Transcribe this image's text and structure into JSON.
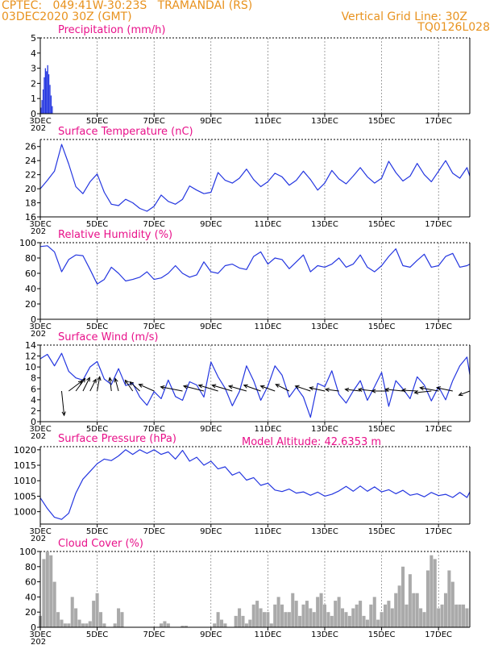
{
  "header": {
    "line1_left": "CPTEC:   049:41W-30:23S   TRAMANDAI (RS)",
    "line2_left": "03DEC2020 30Z (GMT)",
    "line2_right": "Vertical Grid Line: 30Z",
    "line3_right": "TQ0126L028",
    "model_altitude": "Model Altitude: 42.6353 m"
  },
  "colors": {
    "header": "#e8921e",
    "title": "#e8118a",
    "line": "#2436e0",
    "bar": "#2436e0",
    "cloud": "#aaaaaa",
    "arrow": "#000000"
  },
  "x_tick_labels": [
    "3DEC",
    "5DEC",
    "7DEC",
    "9DEC",
    "11DEC",
    "13DEC",
    "15DEC",
    "17DEC"
  ],
  "year_fragment": "202",
  "chart_data": [
    {
      "type": "bar",
      "title": "Precipitation (mm/h)",
      "x_start_day": 3,
      "x_end_day": 18.1,
      "ylim": [
        0,
        5
      ],
      "yticks": [
        0,
        1,
        2,
        3,
        4,
        5
      ],
      "x": [
        3.02,
        3.06,
        3.1,
        3.14,
        3.18,
        3.22,
        3.26,
        3.3,
        3.34,
        3.38,
        3.42
      ],
      "values": [
        0.4,
        0.9,
        1.6,
        2.4,
        3.0,
        2.8,
        3.2,
        2.6,
        1.9,
        1.2,
        0.5
      ]
    },
    {
      "type": "line",
      "title": "Surface Temperature (nC)",
      "x_start_day": 3,
      "x_end_day": 18.1,
      "ylim": [
        16,
        27
      ],
      "yticks": [
        16,
        18,
        20,
        22,
        24,
        26
      ],
      "x": [
        3.0,
        3.25,
        3.5,
        3.75,
        4.0,
        4.25,
        4.5,
        4.75,
        5.0,
        5.25,
        5.5,
        5.75,
        6.0,
        6.25,
        6.5,
        6.75,
        7.0,
        7.25,
        7.5,
        7.75,
        8.0,
        8.25,
        8.5,
        8.75,
        9.0,
        9.25,
        9.5,
        9.75,
        10.0,
        10.25,
        10.5,
        10.75,
        11.0,
        11.25,
        11.5,
        11.75,
        12.0,
        12.25,
        12.5,
        12.75,
        13.0,
        13.25,
        13.5,
        13.75,
        14.0,
        14.25,
        14.5,
        14.75,
        15.0,
        15.25,
        15.5,
        15.75,
        16.0,
        16.25,
        16.5,
        16.75,
        17.0,
        17.25,
        17.5,
        17.75,
        18.0,
        18.1
      ],
      "values": [
        20.0,
        21.2,
        22.5,
        26.3,
        23.5,
        20.3,
        19.3,
        21.0,
        22.1,
        19.5,
        17.8,
        17.6,
        18.5,
        18.0,
        17.2,
        16.8,
        17.5,
        19.1,
        18.2,
        17.8,
        18.5,
        20.4,
        19.8,
        19.3,
        19.5,
        22.3,
        21.2,
        20.8,
        21.5,
        22.8,
        21.3,
        20.3,
        21.0,
        22.2,
        21.7,
        20.5,
        21.2,
        22.5,
        21.3,
        19.8,
        20.8,
        22.6,
        21.4,
        20.7,
        21.8,
        23.0,
        21.7,
        20.8,
        21.5,
        23.9,
        22.3,
        21.1,
        21.8,
        23.6,
        22.0,
        21.0,
        22.5,
        24.0,
        22.2,
        21.5,
        23.0,
        21.8
      ]
    },
    {
      "type": "line",
      "title": "Relative Humidity (%)",
      "x_start_day": 3,
      "x_end_day": 18.1,
      "ylim": [
        0,
        100
      ],
      "yticks": [
        0,
        20,
        40,
        60,
        80,
        100
      ],
      "x": [
        3.0,
        3.25,
        3.5,
        3.75,
        4.0,
        4.25,
        4.5,
        4.75,
        5.0,
        5.25,
        5.5,
        5.75,
        6.0,
        6.25,
        6.5,
        6.75,
        7.0,
        7.25,
        7.5,
        7.75,
        8.0,
        8.25,
        8.5,
        8.75,
        9.0,
        9.25,
        9.5,
        9.75,
        10.0,
        10.25,
        10.5,
        10.75,
        11.0,
        11.25,
        11.5,
        11.75,
        12.0,
        12.25,
        12.5,
        12.75,
        13.0,
        13.25,
        13.5,
        13.75,
        14.0,
        14.25,
        14.5,
        14.75,
        15.0,
        15.25,
        15.5,
        15.75,
        16.0,
        16.25,
        16.5,
        16.75,
        17.0,
        17.25,
        17.5,
        17.75,
        18.0,
        18.1
      ],
      "values": [
        95,
        96,
        88,
        62,
        78,
        84,
        83,
        65,
        46,
        52,
        68,
        60,
        50,
        52,
        55,
        62,
        52,
        54,
        60,
        70,
        60,
        55,
        58,
        75,
        62,
        60,
        70,
        72,
        67,
        65,
        82,
        88,
        72,
        80,
        78,
        66,
        75,
        84,
        62,
        70,
        68,
        72,
        80,
        68,
        72,
        84,
        68,
        62,
        70,
        82,
        92,
        70,
        68,
        77,
        85,
        68,
        70,
        82,
        86,
        68,
        70,
        72
      ]
    },
    {
      "type": "line",
      "title": "Surface Wind (m/s)",
      "x_start_day": 3,
      "x_end_day": 18.1,
      "ylim": [
        0,
        14
      ],
      "yticks": [
        0,
        2,
        4,
        6,
        8,
        10,
        12,
        14
      ],
      "x": [
        3.0,
        3.25,
        3.5,
        3.75,
        4.0,
        4.25,
        4.5,
        4.75,
        5.0,
        5.25,
        5.5,
        5.75,
        6.0,
        6.25,
        6.5,
        6.75,
        7.0,
        7.25,
        7.5,
        7.75,
        8.0,
        8.25,
        8.5,
        8.75,
        9.0,
        9.25,
        9.5,
        9.75,
        10.0,
        10.25,
        10.5,
        10.75,
        11.0,
        11.25,
        11.5,
        11.75,
        12.0,
        12.25,
        12.5,
        12.75,
        13.0,
        13.25,
        13.5,
        13.75,
        14.0,
        14.25,
        14.5,
        14.75,
        15.0,
        15.25,
        15.5,
        15.75,
        16.0,
        16.25,
        16.5,
        16.75,
        17.0,
        17.25,
        17.5,
        17.75,
        18.0,
        18.1
      ],
      "values": [
        11.5,
        12.3,
        10.2,
        12.5,
        9.2,
        8.0,
        7.6,
        10.0,
        11.0,
        7.8,
        6.8,
        9.7,
        6.6,
        7.0,
        4.5,
        3.0,
        5.5,
        4.2,
        7.6,
        4.6,
        3.9,
        7.3,
        6.7,
        4.5,
        10.9,
        8.2,
        6.1,
        2.9,
        5.5,
        10.2,
        7.5,
        3.9,
        6.5,
        10.2,
        8.5,
        4.5,
        6.3,
        4.5,
        0.8,
        7.0,
        6.4,
        9.3,
        5.0,
        3.4,
        5.6,
        7.5,
        3.9,
        6.4,
        9.0,
        2.8,
        7.5,
        6.0,
        4.2,
        8.2,
        6.7,
        3.8,
        6.4,
        4.0,
        7.5,
        10.2,
        11.8,
        8.6
      ],
      "vectors": [
        {
          "x": 3.75,
          "u": 0.6,
          "v": -5.8
        },
        {
          "x": 4.0,
          "u": 3.2,
          "v": 2.4
        },
        {
          "x": 4.25,
          "u": 2.2,
          "v": 3.0
        },
        {
          "x": 4.5,
          "u": 1.6,
          "v": 3.2
        },
        {
          "x": 4.75,
          "u": 1.4,
          "v": 2.8
        },
        {
          "x": 5.0,
          "u": 0.6,
          "v": 3.4
        },
        {
          "x": 5.5,
          "u": -0.4,
          "v": 3.2
        },
        {
          "x": 5.75,
          "u": -0.8,
          "v": 3.0
        },
        {
          "x": 6.25,
          "u": -1.8,
          "v": 2.6
        },
        {
          "x": 6.5,
          "u": -2.4,
          "v": 2.2
        },
        {
          "x": 7.0,
          "u": -3.6,
          "v": 1.6
        },
        {
          "x": 8.0,
          "u": -5.2,
          "v": 1.0
        },
        {
          "x": 8.75,
          "u": -4.8,
          "v": 1.2
        },
        {
          "x": 9.25,
          "u": -4.6,
          "v": 1.4
        },
        {
          "x": 9.75,
          "u": -4.8,
          "v": 1.4
        },
        {
          "x": 10.25,
          "u": -4.2,
          "v": 1.2
        },
        {
          "x": 10.75,
          "u": -4.0,
          "v": 1.4
        },
        {
          "x": 11.25,
          "u": -3.4,
          "v": 1.2
        },
        {
          "x": 11.75,
          "u": -3.2,
          "v": 1.6
        },
        {
          "x": 12.5,
          "u": -3.6,
          "v": 1.2
        },
        {
          "x": 13.0,
          "u": -3.6,
          "v": 0.8
        },
        {
          "x": 13.5,
          "u": -3.2,
          "v": 0.4
        },
        {
          "x": 14.25,
          "u": -3.6,
          "v": 0.4
        },
        {
          "x": 14.75,
          "u": -3.8,
          "v": 0.4
        },
        {
          "x": 15.25,
          "u": -4.0,
          "v": 0.0
        },
        {
          "x": 15.75,
          "u": -4.2,
          "v": 0.4
        },
        {
          "x": 16.25,
          "u": -3.6,
          "v": 0.2
        },
        {
          "x": 16.75,
          "u": -4.0,
          "v": -0.4
        },
        {
          "x": 17.0,
          "u": -4.4,
          "v": 0.8
        },
        {
          "x": 17.5,
          "u": -3.8,
          "v": 0.8
        },
        {
          "x": 18.1,
          "u": -2.6,
          "v": -1.0
        }
      ]
    },
    {
      "type": "line",
      "title": "Surface Pressure (hPa)",
      "x_start_day": 3,
      "x_end_day": 18.1,
      "ylim": [
        996,
        1021
      ],
      "yticks": [
        1000,
        1005,
        1010,
        1015,
        1020
      ],
      "x": [
        3.0,
        3.25,
        3.5,
        3.75,
        4.0,
        4.25,
        4.5,
        4.75,
        5.0,
        5.25,
        5.5,
        5.75,
        6.0,
        6.25,
        6.5,
        6.75,
        7.0,
        7.25,
        7.5,
        7.75,
        8.0,
        8.25,
        8.5,
        8.75,
        9.0,
        9.25,
        9.5,
        9.75,
        10.0,
        10.25,
        10.5,
        10.75,
        11.0,
        11.25,
        11.5,
        11.75,
        12.0,
        12.25,
        12.5,
        12.75,
        13.0,
        13.25,
        13.5,
        13.75,
        14.0,
        14.25,
        14.5,
        14.75,
        15.0,
        15.25,
        15.5,
        15.75,
        16.0,
        16.25,
        16.5,
        16.75,
        17.0,
        17.25,
        17.5,
        17.75,
        18.0,
        18.1
      ],
      "values": [
        1004.5,
        1001.0,
        998.2,
        997.5,
        999.5,
        1006.0,
        1010.5,
        1013.0,
        1015.5,
        1017.0,
        1016.5,
        1018.0,
        1020.0,
        1018.5,
        1020.0,
        1018.8,
        1020.0,
        1018.5,
        1019.3,
        1017.0,
        1019.8,
        1016.3,
        1017.6,
        1015.0,
        1016.3,
        1013.8,
        1014.5,
        1011.8,
        1012.8,
        1010.2,
        1011.0,
        1008.5,
        1009.2,
        1007.0,
        1006.5,
        1007.3,
        1006.0,
        1006.4,
        1005.3,
        1006.3,
        1005.0,
        1005.6,
        1006.7,
        1008.2,
        1006.6,
        1008.3,
        1006.6,
        1008.0,
        1006.4,
        1007.1,
        1005.8,
        1006.9,
        1005.3,
        1005.8,
        1004.8,
        1006.2,
        1005.2,
        1005.6,
        1004.6,
        1006.2,
        1004.6,
        1006.4
      ]
    },
    {
      "type": "bar",
      "title": "Cloud Cover (%)",
      "x_start_day": 3,
      "x_end_day": 18.1,
      "ylim": [
        0,
        100
      ],
      "yticks": [
        0,
        20,
        40,
        60,
        80,
        100
      ],
      "x": [
        3.0,
        3.125,
        3.25,
        3.375,
        3.5,
        3.625,
        3.75,
        3.875,
        4.0,
        4.125,
        4.25,
        4.375,
        4.5,
        4.625,
        4.75,
        4.875,
        5.0,
        5.125,
        5.25,
        5.375,
        5.5,
        5.625,
        5.75,
        5.875,
        6.0,
        6.125,
        6.25,
        6.375,
        6.5,
        6.625,
        6.75,
        6.875,
        7.0,
        7.125,
        7.25,
        7.375,
        7.5,
        7.625,
        7.75,
        7.875,
        8.0,
        8.125,
        8.25,
        8.375,
        8.5,
        8.625,
        8.75,
        8.875,
        9.0,
        9.125,
        9.25,
        9.375,
        9.5,
        9.625,
        9.75,
        9.875,
        10.0,
        10.125,
        10.25,
        10.375,
        10.5,
        10.625,
        10.75,
        10.875,
        11.0,
        11.125,
        11.25,
        11.375,
        11.5,
        11.625,
        11.75,
        11.875,
        12.0,
        12.125,
        12.25,
        12.375,
        12.5,
        12.625,
        12.75,
        12.875,
        13.0,
        13.125,
        13.25,
        13.375,
        13.5,
        13.625,
        13.75,
        13.875,
        14.0,
        14.125,
        14.25,
        14.375,
        14.5,
        14.625,
        14.75,
        14.875,
        15.0,
        15.125,
        15.25,
        15.375,
        15.5,
        15.625,
        15.75,
        15.875,
        16.0,
        16.125,
        16.25,
        16.375,
        16.5,
        16.625,
        16.75,
        16.875,
        17.0,
        17.125,
        17.25,
        17.375,
        17.5,
        17.625,
        17.75,
        17.875,
        18.0
      ],
      "values": [
        15,
        90,
        100,
        95,
        60,
        20,
        10,
        5,
        5,
        40,
        25,
        10,
        5,
        5,
        8,
        35,
        45,
        20,
        5,
        0,
        0,
        5,
        25,
        20,
        0,
        0,
        0,
        0,
        0,
        0,
        0,
        0,
        0,
        0,
        5,
        8,
        5,
        0,
        0,
        0,
        2,
        2,
        0,
        0,
        0,
        0,
        0,
        0,
        0,
        5,
        20,
        10,
        5,
        0,
        0,
        15,
        25,
        15,
        5,
        10,
        30,
        35,
        25,
        20,
        20,
        5,
        30,
        40,
        30,
        20,
        20,
        45,
        35,
        15,
        30,
        35,
        25,
        20,
        40,
        45,
        30,
        20,
        15,
        35,
        40,
        25,
        20,
        15,
        25,
        30,
        35,
        15,
        10,
        30,
        40,
        10,
        20,
        30,
        35,
        25,
        45,
        55,
        80,
        30,
        70,
        45,
        45,
        25,
        20,
        75,
        95,
        90,
        25,
        30,
        45,
        75,
        60,
        30,
        30,
        30,
        25
      ]
    }
  ]
}
